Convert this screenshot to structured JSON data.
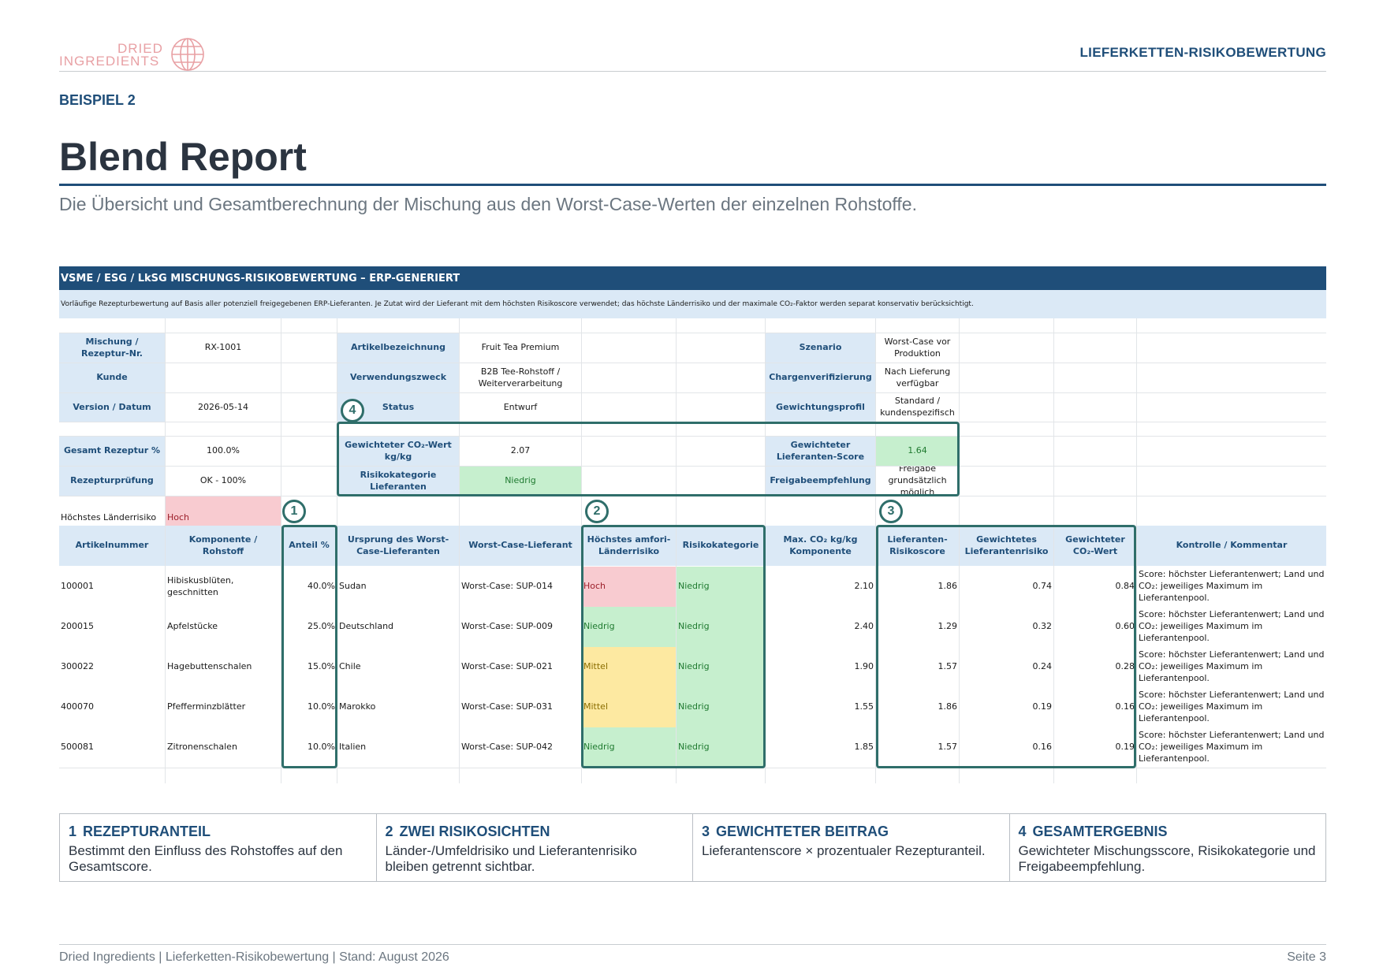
{
  "header": {
    "logo_line1": "DRIED",
    "logo_line2": "INGREDIENTS",
    "doc_title": "LIEFERKETTEN-RISIKOBEWERTUNG"
  },
  "page": {
    "eyebrow": "BEISPIEL 2",
    "title": "Blend Report",
    "subtitle": "Die Übersicht und Gesamtberechnung der Mischung aus den Worst-Case-Werten der einzelnen Rohstoffe."
  },
  "sheet": {
    "band_title": "VSME / ESG / LkSG MISCHUNGS-RISIKOBEWERTUNG – ERP-GENERIERT",
    "band_note": "Vorläufige Rezepturbewertung auf Basis aller potenziell freigegebenen ERP-Lieferanten. Je Zutat wird der Lieferant mit dem höchsten Risikoscore verwendet; das höchste Länderrisiko und der maximale CO₂-Faktor werden separat konservativ berücksichtigt.",
    "meta": {
      "mix_label": "Mischung / Rezeptur-Nr.",
      "mix_value": "RX-1001",
      "customer_label": "Kunde",
      "customer_value": "",
      "version_label": "Version / Datum",
      "version_value": "2026-05-14",
      "article_label": "Artikelbezeichnung",
      "article_value": "Fruit Tea Premium",
      "usage_label": "Verwendungszweck",
      "usage_value": "B2B Tee-Rohstoff / Weiterverarbeitung",
      "status_label": "Status",
      "status_value": "Entwurf",
      "scenario_label": "Szenario",
      "scenario_value": "Worst-Case vor Produktion",
      "batch_label": "Chargenverifizierung",
      "batch_value": "Nach Lieferung verfügbar",
      "weighting_label": "Gewichtungsprofil",
      "weighting_value": "Standard / kundenspezifisch"
    },
    "summary": {
      "total_label": "Gesamt Rezeptur %",
      "total_value": "100.0%",
      "check_label": "Rezepturprüfung",
      "check_value": "OK - 100%",
      "co2_label": "Gewichteter CO₂-Wert kg/kg",
      "co2_value": "2.07",
      "riskcat_label": "Risikokategorie Lieferanten",
      "riskcat_value": "Niedrig",
      "supplier_score_label": "Gewichteter Lieferanten-Score",
      "supplier_score_value": "1.64",
      "approval_label": "Freigabeempfehlung",
      "approval_value": "Freigabe grundsätzlich möglich",
      "country_label": "Höchstes Länderrisiko",
      "country_value": "Hoch"
    },
    "columns": [
      "Artikelnummer",
      "Komponente / Rohstoff",
      "Anteil %",
      "Ursprung des Worst-Case-Lieferanten",
      "Worst-Case-Lieferant",
      "Höchstes amfori-Länderrisiko",
      "Risikokategorie",
      "Max. CO₂ kg/kg Komponente",
      "Lieferanten-Risikoscore",
      "Gewichtetes Lieferantenrisiko",
      "Gewichteter CO₂-Wert",
      "Kontrolle / Kommentar"
    ],
    "rows": [
      {
        "id": "100001",
        "name": "Hibiskusblüten, geschnitten",
        "share": "40.0%",
        "origin": "Sudan",
        "supplier": "Worst-Case: SUP-014",
        "country_risk": "Hoch",
        "category": "Niedrig",
        "co2": "2.10",
        "score": "1.86",
        "weighted_risk": "0.74",
        "weighted_co2": "0.84",
        "comment": "Score: höchster Lieferantenwert; Land und CO₂: jeweiliges Maximum im Lieferantenpool."
      },
      {
        "id": "200015",
        "name": "Apfelstücke",
        "share": "25.0%",
        "origin": "Deutschland",
        "supplier": "Worst-Case: SUP-009",
        "country_risk": "Niedrig",
        "category": "Niedrig",
        "co2": "2.40",
        "score": "1.29",
        "weighted_risk": "0.32",
        "weighted_co2": "0.60",
        "comment": "Score: höchster Lieferantenwert; Land und CO₂: jeweiliges Maximum im Lieferantenpool."
      },
      {
        "id": "300022",
        "name": "Hagebuttenschalen",
        "share": "15.0%",
        "origin": "Chile",
        "supplier": "Worst-Case: SUP-021",
        "country_risk": "Mittel",
        "category": "Niedrig",
        "co2": "1.90",
        "score": "1.57",
        "weighted_risk": "0.24",
        "weighted_co2": "0.28",
        "comment": "Score: höchster Lieferantenwert; Land und CO₂: jeweiliges Maximum im Lieferantenpool."
      },
      {
        "id": "400070",
        "name": "Pfefferminzblätter",
        "share": "10.0%",
        "origin": "Marokko",
        "supplier": "Worst-Case: SUP-031",
        "country_risk": "Mittel",
        "category": "Niedrig",
        "co2": "1.55",
        "score": "1.86",
        "weighted_risk": "0.19",
        "weighted_co2": "0.16",
        "comment": "Score: höchster Lieferantenwert; Land und CO₂: jeweiliges Maximum im Lieferantenpool."
      },
      {
        "id": "500081",
        "name": "Zitronenschalen",
        "share": "10.0%",
        "origin": "Italien",
        "supplier": "Worst-Case: SUP-042",
        "country_risk": "Niedrig",
        "category": "Niedrig",
        "co2": "1.85",
        "score": "1.57",
        "weighted_risk": "0.16",
        "weighted_co2": "0.19",
        "comment": "Score: höchster Lieferantenwert; Land und CO₂: jeweiliges Maximum im Lieferantenpool."
      }
    ],
    "callouts": [
      "1",
      "2",
      "3",
      "4"
    ]
  },
  "steps": [
    {
      "num": "1",
      "title": "REZEPTURANTEIL",
      "text": "Bestimmt den Einfluss des Rohstoffes auf den Gesamtscore."
    },
    {
      "num": "2",
      "title": "ZWEI RISIKOSICHTEN",
      "text": "Länder-/Umfeldrisiko und Lieferantenrisiko bleiben getrennt sichtbar."
    },
    {
      "num": "3",
      "title": "GEWICHTETER BEITRAG",
      "text": "Lieferantenscore × prozentualer Rezepturanteil."
    },
    {
      "num": "4",
      "title": "GESAMTERGEBNIS",
      "text": "Gewichteter Mischungsscore, Risikokategorie und Freigabeempfehlung."
    }
  ],
  "footer": {
    "left": "Dried Ingredients | Lieferketten-Risikobewertung | Stand: August 2026",
    "right": "Seite 3"
  },
  "colors": {
    "brand": "#1f4e79",
    "label_fill": "#dbe9f6",
    "green": "#c6efce",
    "red": "#f8cbd0",
    "yellow": "#fde9a1",
    "callout": "#2f6e6a"
  },
  "icons": {
    "logo": "globe-icon"
  }
}
